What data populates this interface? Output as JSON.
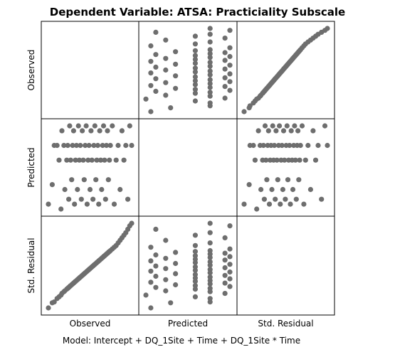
{
  "chart_data": {
    "type": "scatter",
    "title": "Dependent Variable: ATSA: Practiciality Subscale",
    "footnote": "Model: Intercept + DQ_1Site + Time + DQ_1Site * Time",
    "variables": [
      "Observed",
      "Predicted",
      "Std. Residual"
    ],
    "grid": "3x3 scatterplot matrix",
    "point_color": "#6e6e6e",
    "observations": [
      {
        "observed": 1.0,
        "predicted": 1.6,
        "residual": -2.4
      },
      {
        "observed": 1.2,
        "predicted": 1.8,
        "residual": -2.1
      },
      {
        "observed": 1.3,
        "predicted": 2.2,
        "residual": -2.05
      },
      {
        "observed": 1.45,
        "predicted": 2.2,
        "residual": -1.85
      },
      {
        "observed": 1.55,
        "predicted": 2.05,
        "residual": -1.75
      },
      {
        "observed": 1.65,
        "predicted": 1.55,
        "residual": -1.65
      },
      {
        "observed": 1.7,
        "predicted": 2.35,
        "residual": -1.55
      },
      {
        "observed": 1.8,
        "predicted": 2.2,
        "residual": -1.45
      },
      {
        "observed": 1.85,
        "predicted": 1.75,
        "residual": -1.4
      },
      {
        "observed": 1.95,
        "predicted": 2.05,
        "residual": -1.3
      },
      {
        "observed": 2.0,
        "predicted": 2.2,
        "residual": -1.25
      },
      {
        "observed": 2.05,
        "predicted": 1.65,
        "residual": -1.2
      },
      {
        "observed": 2.1,
        "predicted": 2.4,
        "residual": -1.15
      },
      {
        "observed": 2.15,
        "predicted": 2.05,
        "residual": -1.1
      },
      {
        "observed": 2.2,
        "predicted": 1.85,
        "residual": -1.05
      },
      {
        "observed": 2.25,
        "predicted": 2.2,
        "residual": -1.0
      },
      {
        "observed": 2.3,
        "predicted": 2.35,
        "residual": -0.95
      },
      {
        "observed": 2.35,
        "predicted": 1.6,
        "residual": -0.9
      },
      {
        "observed": 2.4,
        "predicted": 2.05,
        "residual": -0.85
      },
      {
        "observed": 2.45,
        "predicted": 2.2,
        "residual": -0.8
      },
      {
        "observed": 2.5,
        "predicted": 1.75,
        "residual": -0.75
      },
      {
        "observed": 2.55,
        "predicted": 2.4,
        "residual": -0.7
      },
      {
        "observed": 2.6,
        "predicted": 2.05,
        "residual": -0.65
      },
      {
        "observed": 2.65,
        "predicted": 2.2,
        "residual": -0.6
      },
      {
        "observed": 2.7,
        "predicted": 1.65,
        "residual": -0.55
      },
      {
        "observed": 2.75,
        "predicted": 2.35,
        "residual": -0.5
      },
      {
        "observed": 2.8,
        "predicted": 2.05,
        "residual": -0.45
      },
      {
        "observed": 2.85,
        "predicted": 1.85,
        "residual": -0.4
      },
      {
        "observed": 2.9,
        "predicted": 2.2,
        "residual": -0.35
      },
      {
        "observed": 2.95,
        "predicted": 2.4,
        "residual": -0.3
      },
      {
        "observed": 3.0,
        "predicted": 1.6,
        "residual": -0.25
      },
      {
        "observed": 3.05,
        "predicted": 2.05,
        "residual": -0.2
      },
      {
        "observed": 3.1,
        "predicted": 2.2,
        "residual": -0.15
      },
      {
        "observed": 3.15,
        "predicted": 1.75,
        "residual": -0.1
      },
      {
        "observed": 3.2,
        "predicted": 2.35,
        "residual": -0.05
      },
      {
        "observed": 3.25,
        "predicted": 2.05,
        "residual": 0.0
      },
      {
        "observed": 3.3,
        "predicted": 1.65,
        "residual": 0.05
      },
      {
        "observed": 3.35,
        "predicted": 2.2,
        "residual": 0.1
      },
      {
        "observed": 3.4,
        "predicted": 2.4,
        "residual": 0.15
      },
      {
        "observed": 3.45,
        "predicted": 1.85,
        "residual": 0.2
      },
      {
        "observed": 3.5,
        "predicted": 2.05,
        "residual": 0.25
      },
      {
        "observed": 3.55,
        "predicted": 2.2,
        "residual": 0.3
      },
      {
        "observed": 3.6,
        "predicted": 1.6,
        "residual": 0.35
      },
      {
        "observed": 3.65,
        "predicted": 2.35,
        "residual": 0.4
      },
      {
        "observed": 3.7,
        "predicted": 2.05,
        "residual": 0.45
      },
      {
        "observed": 3.75,
        "predicted": 1.75,
        "residual": 0.5
      },
      {
        "observed": 3.8,
        "predicted": 2.2,
        "residual": 0.55
      },
      {
        "observed": 3.85,
        "predicted": 2.4,
        "residual": 0.6
      },
      {
        "observed": 3.9,
        "predicted": 2.05,
        "residual": 0.65
      },
      {
        "observed": 3.95,
        "predicted": 1.65,
        "residual": 0.7
      },
      {
        "observed": 4.0,
        "predicted": 2.2,
        "residual": 0.75
      },
      {
        "observed": 4.05,
        "predicted": 2.35,
        "residual": 0.8
      },
      {
        "observed": 4.1,
        "predicted": 1.85,
        "residual": 0.85
      },
      {
        "observed": 4.15,
        "predicted": 2.05,
        "residual": 0.9
      },
      {
        "observed": 4.2,
        "predicted": 2.2,
        "residual": 0.95
      },
      {
        "observed": 4.3,
        "predicted": 2.4,
        "residual": 1.05
      },
      {
        "observed": 4.4,
        "predicted": 1.6,
        "residual": 1.15
      },
      {
        "observed": 4.5,
        "predicted": 2.05,
        "residual": 1.25
      },
      {
        "observed": 4.6,
        "predicted": 2.2,
        "residual": 1.4
      },
      {
        "observed": 4.7,
        "predicted": 1.75,
        "residual": 1.55
      },
      {
        "observed": 4.8,
        "predicted": 2.35,
        "residual": 1.7
      },
      {
        "observed": 4.9,
        "predicted": 2.05,
        "residual": 1.85
      },
      {
        "observed": 5.0,
        "predicted": 2.2,
        "residual": 2.0
      },
      {
        "observed": 5.1,
        "predicted": 1.65,
        "residual": 2.2
      },
      {
        "observed": 5.2,
        "predicted": 2.4,
        "residual": 2.4
      },
      {
        "observed": 5.3,
        "predicted": 2.2,
        "residual": 2.55
      }
    ]
  }
}
